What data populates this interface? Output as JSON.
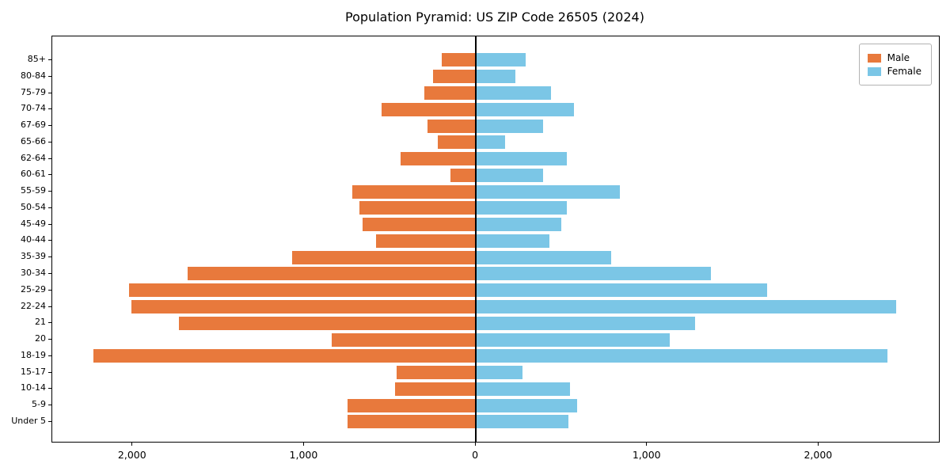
{
  "chart_data": {
    "type": "bar",
    "subtype": "population-pyramid",
    "title": "Population Pyramid: US ZIP Code 26505 (2024)",
    "legend_position": "upper right",
    "grid": false,
    "categories_top_to_bottom": [
      "85+",
      "80-84",
      "75-79",
      "70-74",
      "67-69",
      "65-66",
      "62-64",
      "60-61",
      "55-59",
      "50-54",
      "45-49",
      "40-44",
      "35-39",
      "30-34",
      "25-29",
      "22-24",
      "21",
      "20",
      "18-19",
      "15-17",
      "10-14",
      "5-9",
      "Under 5"
    ],
    "series": [
      {
        "name": "Male",
        "side": "left",
        "color": "#e8793c",
        "values": [
          200,
          250,
          300,
          550,
          280,
          220,
          440,
          150,
          720,
          680,
          660,
          580,
          1070,
          1680,
          2020,
          2010,
          1730,
          840,
          2230,
          460,
          470,
          750,
          750
        ]
      },
      {
        "name": "Female",
        "side": "right",
        "color": "#7bc6e6",
        "values": [
          290,
          230,
          440,
          570,
          390,
          170,
          530,
          390,
          840,
          530,
          500,
          430,
          790,
          1370,
          1700,
          2450,
          1280,
          1130,
          2400,
          270,
          550,
          590,
          540
        ]
      }
    ],
    "x_axis": {
      "tick_values": [
        -2000,
        -1000,
        0,
        1000,
        2000
      ],
      "tick_labels": [
        "2,000",
        "1,000",
        "0",
        "1,000",
        "2,000"
      ],
      "xlim": [
        -2470,
        2700
      ]
    }
  }
}
